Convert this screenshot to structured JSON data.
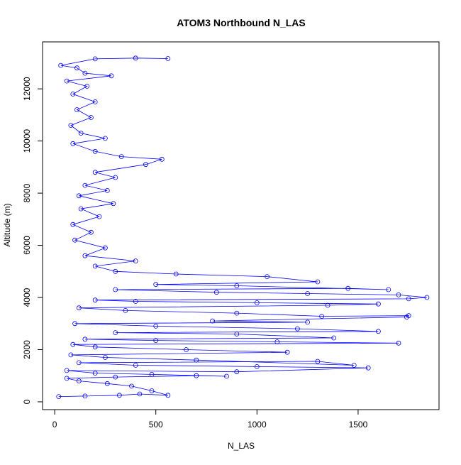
{
  "chart_data": {
    "type": "line",
    "title": "ATOM3 Northbound N_LAS",
    "xlabel": "N_LAS",
    "ylabel": "Altitude (m)",
    "xlim": [
      -60,
      1900
    ],
    "ylim": [
      -300,
      13800
    ],
    "x_ticks": [
      0,
      500,
      1000,
      1500
    ],
    "y_ticks": [
      0,
      2000,
      4000,
      6000,
      8000,
      10000,
      12000
    ],
    "grid": false,
    "legend": "none",
    "series_color": "#0000ff",
    "marker": "open-circle",
    "series": [
      {
        "points": [
          [
            20,
            200
          ],
          [
            150,
            220
          ],
          [
            320,
            250
          ],
          [
            420,
            300
          ],
          [
            560,
            250
          ],
          [
            480,
            420
          ],
          [
            380,
            600
          ],
          [
            260,
            700
          ],
          [
            120,
            800
          ],
          [
            60,
            900
          ],
          [
            300,
            950
          ],
          [
            700,
            1000
          ],
          [
            850,
            980
          ],
          [
            480,
            1050
          ],
          [
            200,
            1100
          ],
          [
            60,
            1200
          ],
          [
            900,
            1150
          ],
          [
            1550,
            1300
          ],
          [
            1000,
            1350
          ],
          [
            400,
            1400
          ],
          [
            120,
            1500
          ],
          [
            1300,
            1550
          ],
          [
            1480,
            1400
          ],
          [
            700,
            1600
          ],
          [
            250,
            1700
          ],
          [
            80,
            1800
          ],
          [
            1150,
            1900
          ],
          [
            650,
            2000
          ],
          [
            200,
            2100
          ],
          [
            90,
            2200
          ],
          [
            1700,
            2250
          ],
          [
            1100,
            2300
          ],
          [
            500,
            2350
          ],
          [
            150,
            2400
          ],
          [
            1380,
            2450
          ],
          [
            900,
            2600
          ],
          [
            300,
            2650
          ],
          [
            1600,
            2700
          ],
          [
            1200,
            2800
          ],
          [
            500,
            2900
          ],
          [
            100,
            3000
          ],
          [
            1250,
            3050
          ],
          [
            780,
            3100
          ],
          [
            1740,
            3250
          ],
          [
            1750,
            3300
          ],
          [
            1320,
            3280
          ],
          [
            900,
            3400
          ],
          [
            350,
            3500
          ],
          [
            120,
            3600
          ],
          [
            1350,
            3700
          ],
          [
            1600,
            3750
          ],
          [
            1000,
            3800
          ],
          [
            400,
            3850
          ],
          [
            200,
            3900
          ],
          [
            1750,
            3950
          ],
          [
            1840,
            4000
          ],
          [
            1700,
            4100
          ],
          [
            1250,
            4150
          ],
          [
            800,
            4200
          ],
          [
            300,
            4300
          ],
          [
            1450,
            4350
          ],
          [
            1650,
            4300
          ],
          [
            900,
            4450
          ],
          [
            500,
            4500
          ],
          [
            1300,
            4600
          ],
          [
            1050,
            4800
          ],
          [
            600,
            4900
          ],
          [
            300,
            5000
          ],
          [
            200,
            5200
          ],
          [
            400,
            5400
          ],
          [
            150,
            5600
          ],
          [
            250,
            5900
          ],
          [
            100,
            6200
          ],
          [
            180,
            6500
          ],
          [
            90,
            6800
          ],
          [
            220,
            7100
          ],
          [
            130,
            7400
          ],
          [
            290,
            7600
          ],
          [
            120,
            7900
          ],
          [
            260,
            8100
          ],
          [
            150,
            8300
          ],
          [
            300,
            8600
          ],
          [
            200,
            8800
          ],
          [
            450,
            9100
          ],
          [
            530,
            9300
          ],
          [
            330,
            9400
          ],
          [
            200,
            9600
          ],
          [
            90,
            9900
          ],
          [
            250,
            10100
          ],
          [
            130,
            10300
          ],
          [
            80,
            10600
          ],
          [
            180,
            10900
          ],
          [
            110,
            11200
          ],
          [
            200,
            11500
          ],
          [
            90,
            11800
          ],
          [
            160,
            12100
          ],
          [
            60,
            12300
          ],
          [
            280,
            12500
          ],
          [
            150,
            12600
          ],
          [
            110,
            12800
          ],
          [
            30,
            12900
          ],
          [
            200,
            13150
          ],
          [
            400,
            13180
          ],
          [
            560,
            13160
          ]
        ]
      }
    ]
  }
}
